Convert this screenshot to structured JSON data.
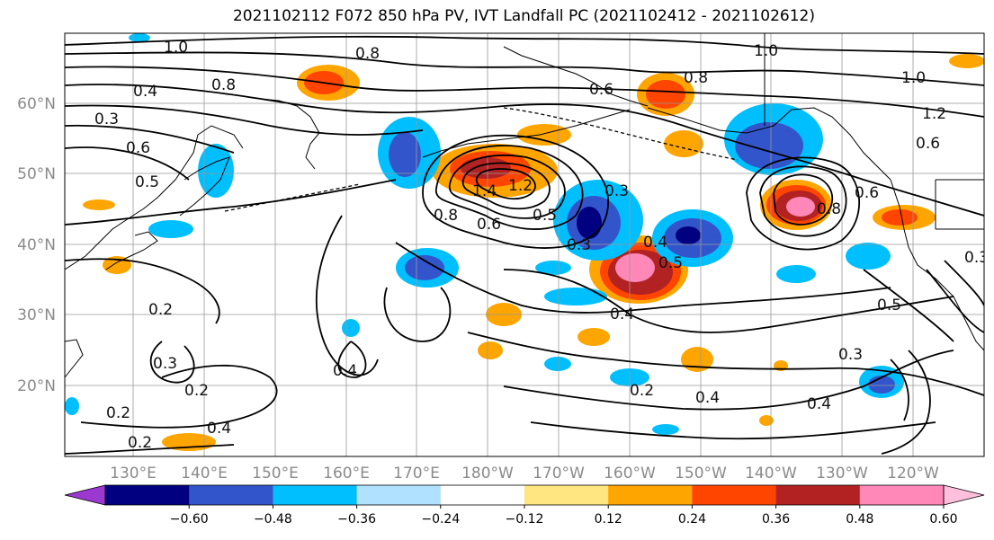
{
  "title": "2021102112 F072 850 hPa PV, IVT Landfall PC (2021102412 - 2021102612)",
  "lat_labels": [
    "60°N",
    "50°N",
    "40°N",
    "30°N",
    "20°N"
  ],
  "lon_labels": [
    "130°E",
    "140°E",
    "150°E",
    "160°E",
    "170°E",
    "180°W",
    "170°W",
    "160°W",
    "150°W",
    "140°W",
    "130°W",
    "120°W"
  ],
  "contour_labels": [
    "1.0",
    "0.8",
    "0.8",
    "1.0",
    "0.8",
    "0.6",
    "0.4",
    "0.3",
    "0.6",
    "0.5",
    "0.8",
    "1.4",
    "1.2",
    "0.6",
    "0.5",
    "0.3",
    "0.4",
    "0.5",
    "0.4",
    "0.2",
    "0.3",
    "0.3",
    "0.4",
    "0.2",
    "0.2",
    "0.4",
    "0.2",
    "0.4",
    "0.2",
    "0.5",
    "0.3",
    "0.4",
    "1.2",
    "1.0",
    "0.8",
    "0.6",
    "0.6",
    "0.3"
  ],
  "colorbar": {
    "ticks": [
      "−0.60",
      "−0.48",
      "−0.36",
      "−0.24",
      "−0.12",
      "0.12",
      "0.24",
      "0.36",
      "0.48",
      "0.60"
    ],
    "colors": [
      "#9a38d0",
      "#000080",
      "#3355cc",
      "#00bfff",
      "#b0e2ff",
      "#ffffff",
      "#ffe680",
      "#ffa500",
      "#ff4500",
      "#b22222",
      "#ff88b8",
      "#ffbfdd"
    ]
  }
}
